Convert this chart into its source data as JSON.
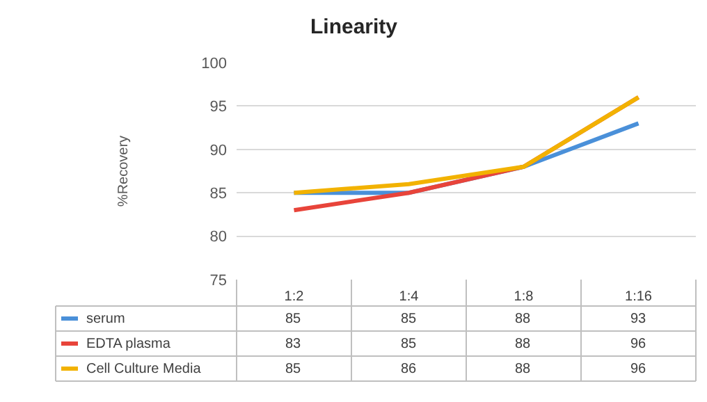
{
  "chart_data": {
    "type": "line",
    "title": "Linearity",
    "ylabel": "%Recovery",
    "categories": [
      "1:2",
      "1:4",
      "1:8",
      "1:16"
    ],
    "series": [
      {
        "name": "serum",
        "color": "#4a90d9",
        "values": [
          85,
          85,
          88,
          93
        ]
      },
      {
        "name": "EDTA plasma",
        "color": "#e8443a",
        "values": [
          83,
          85,
          88,
          96
        ]
      },
      {
        "name": "Cell Culture Media",
        "color": "#f2b200",
        "values": [
          85,
          86,
          88,
          96
        ]
      }
    ],
    "ylim": [
      75,
      100
    ],
    "yticks": [
      75,
      80,
      85,
      90,
      95,
      100
    ],
    "grid": "y",
    "legend": "bottom",
    "data_labels": true,
    "marker": "none",
    "line_style": "solid"
  }
}
